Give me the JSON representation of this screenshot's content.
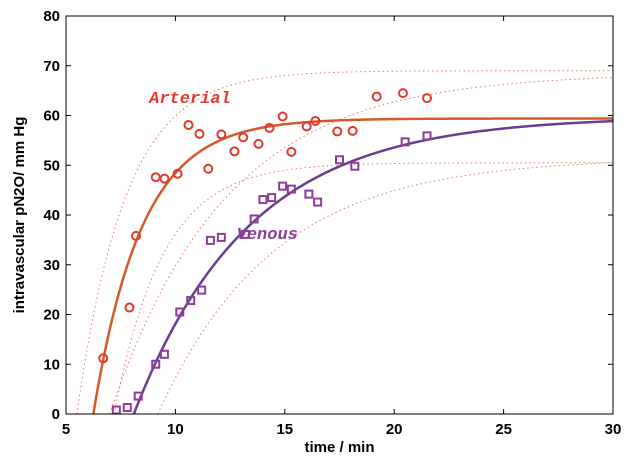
{
  "chart_data": {
    "type": "scatter",
    "xlabel": "time / min",
    "ylabel": "intravascular pN2O/ mm Hg",
    "xlim": [
      5,
      30
    ],
    "ylim": [
      0,
      80
    ],
    "xticks": [
      5,
      10,
      15,
      20,
      25,
      30
    ],
    "yticks": [
      0,
      10,
      20,
      30,
      40,
      50,
      60,
      70,
      80
    ],
    "grid": false,
    "legend": "none",
    "annotations": [
      {
        "text": "Arterial",
        "x": 8.8,
        "y": 62.5,
        "color": "#e03a2f"
      },
      {
        "text": "Venous",
        "x": 12.8,
        "y": 35.2,
        "color": "#8b3f9b"
      }
    ],
    "series": [
      {
        "name": "Arterial",
        "marker": "circle",
        "color": "#e03a2f",
        "points": [
          [
            6.7,
            11.2
          ],
          [
            7.9,
            21.4
          ],
          [
            8.2,
            35.8
          ],
          [
            9.1,
            47.6
          ],
          [
            9.5,
            47.3
          ],
          [
            10.1,
            48.3
          ],
          [
            10.6,
            58.1
          ],
          [
            11.1,
            56.3
          ],
          [
            11.5,
            49.3
          ],
          [
            12.1,
            56.2
          ],
          [
            12.7,
            52.8
          ],
          [
            13.1,
            55.6
          ],
          [
            13.8,
            54.3
          ],
          [
            14.3,
            57.5
          ],
          [
            14.9,
            59.8
          ],
          [
            15.3,
            52.7
          ],
          [
            16.0,
            57.8
          ],
          [
            16.4,
            58.9
          ],
          [
            17.4,
            56.8
          ],
          [
            18.1,
            56.9
          ],
          [
            19.2,
            63.8
          ],
          [
            20.4,
            64.5
          ],
          [
            21.5,
            63.5
          ]
        ],
        "fit": {
          "color": "#d45a2a",
          "t0": 6.25,
          "plateau": 59.4,
          "k": 0.45
        },
        "bounds": [
          {
            "t0": 5.5,
            "plateau": 69,
            "k": 0.45
          },
          {
            "t0": 7.2,
            "plateau": 50.5,
            "k": 0.45
          }
        ]
      },
      {
        "name": "Venous",
        "marker": "square",
        "color": "#8b3f9b",
        "points": [
          [
            7.3,
            0.8
          ],
          [
            7.8,
            1.3
          ],
          [
            8.3,
            3.6
          ],
          [
            9.1,
            10.0
          ],
          [
            9.5,
            12.0
          ],
          [
            10.2,
            20.5
          ],
          [
            10.7,
            22.8
          ],
          [
            11.2,
            24.9
          ],
          [
            11.6,
            34.9
          ],
          [
            12.1,
            35.5
          ],
          [
            13.2,
            36.1
          ],
          [
            13.6,
            39.2
          ],
          [
            14.0,
            43.1
          ],
          [
            14.4,
            43.5
          ],
          [
            14.9,
            45.8
          ],
          [
            15.3,
            45.2
          ],
          [
            16.1,
            44.2
          ],
          [
            16.5,
            42.6
          ],
          [
            17.5,
            51.1
          ],
          [
            18.2,
            49.8
          ],
          [
            20.5,
            54.7
          ],
          [
            21.5,
            55.9
          ]
        ],
        "fit": {
          "color": "#6b3d8f",
          "t0": 8.1,
          "plateau": 59.8,
          "k": 0.19
        },
        "bounds": [
          {
            "t0": 7.0,
            "plateau": 68.5,
            "k": 0.19
          },
          {
            "t0": 9.2,
            "plateau": 51.5,
            "k": 0.19
          }
        ]
      }
    ]
  }
}
